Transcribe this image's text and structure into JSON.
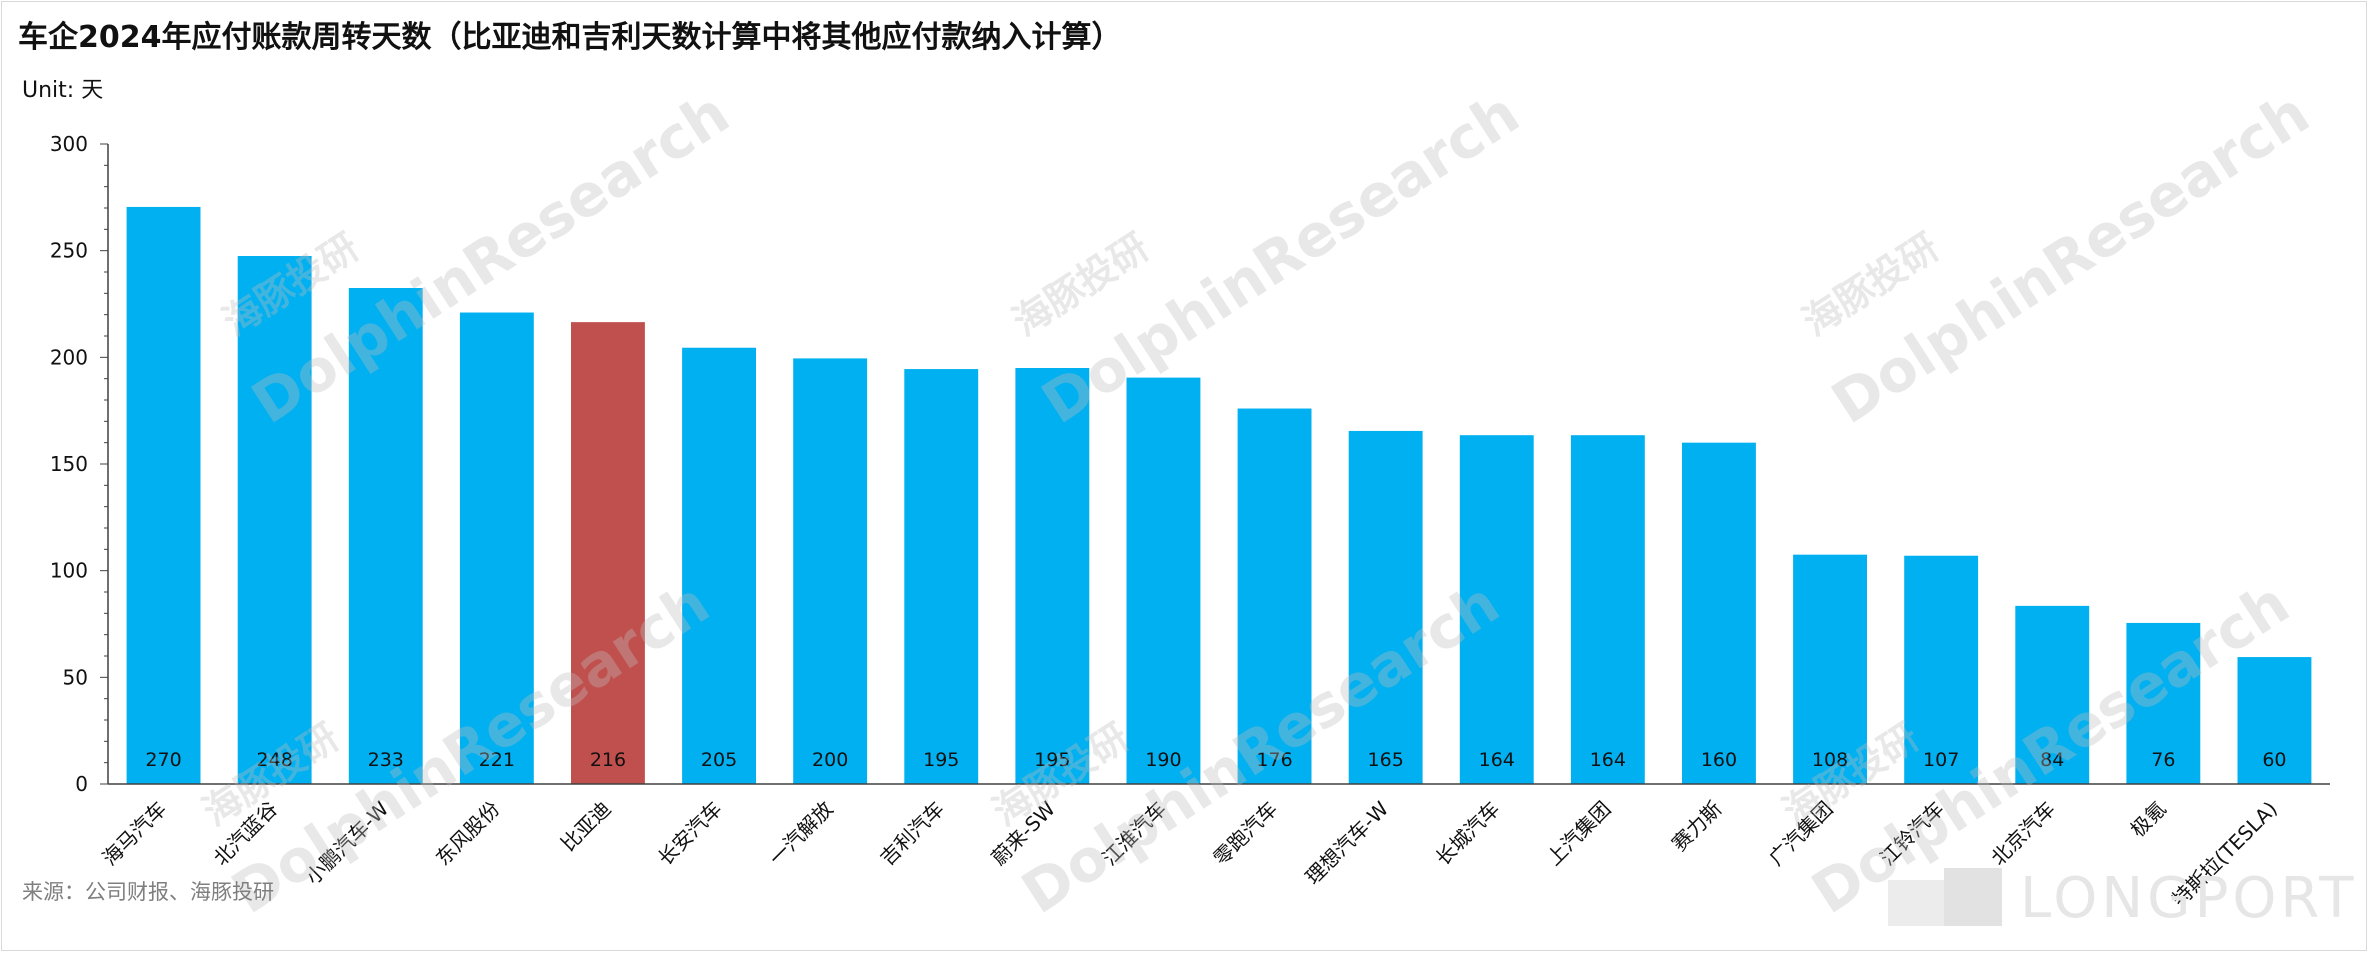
{
  "title": "车企2024年应付账款周转天数（比亚迪和吉利天数计算中将其他应付款纳入计算）",
  "unit_label": "Unit: 天",
  "source": "来源：公司财报、海豚投研",
  "watermark": {
    "cn": "海豚投研",
    "en": "DolphinResearch"
  },
  "brand": {
    "text": "LONGPORT",
    "icon": "longport-logo-icon"
  },
  "colors": {
    "bar": "#00B0F0",
    "highlight": "#C0504D",
    "axis": "#404040",
    "label": "#111111"
  },
  "chart_data": {
    "type": "bar",
    "title": "车企2024年应付账款周转天数（比亚迪和吉利天数计算中将其他应付款纳入计算）",
    "ylabel": "Unit: 天",
    "xlabel": "",
    "ylim": [
      0,
      300
    ],
    "yticks": [
      0,
      50,
      100,
      150,
      200,
      250,
      300
    ],
    "grid": false,
    "legend": "none",
    "categories": [
      "海马汽车",
      "北汽蓝谷",
      "小鹏汽车-W",
      "东风股份",
      "比亚迪",
      "长安汽车",
      "一汽解放",
      "吉利汽车",
      "蔚来-SW",
      "江淮汽车",
      "零跑汽车",
      "理想汽车-W",
      "长城汽车",
      "上汽集团",
      "赛力斯",
      "广汽集团",
      "江铃汽车",
      "北京汽车",
      "极氪",
      "特斯拉(TESLA)"
    ],
    "values": [
      270,
      248,
      233,
      221,
      216,
      205,
      200,
      195,
      195,
      190,
      176,
      165,
      164,
      164,
      160,
      108,
      107,
      84,
      76,
      60
    ],
    "plotted_values": [
      270.5,
      247.5,
      232.5,
      221,
      216.5,
      204.5,
      199.5,
      194.5,
      195,
      190.5,
      176,
      165.5,
      163.5,
      163.5,
      160,
      107.5,
      107,
      83.5,
      75.5,
      59.5
    ],
    "highlight": [
      "比亚迪"
    ]
  }
}
